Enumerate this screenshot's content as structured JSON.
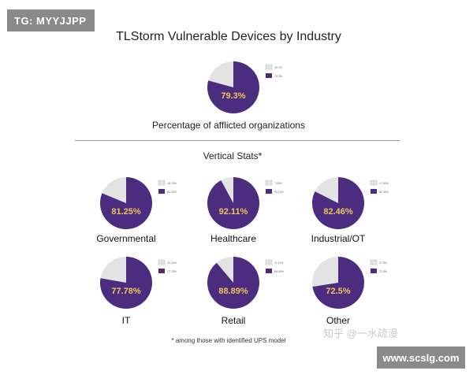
{
  "badge_tag": "TG: MYYJJPP",
  "badge_site": "www.scslg.com",
  "watermark": "知乎 @一水疏漫",
  "colors": {
    "affected": "#4b2c7f",
    "unaffected": "#e3e3e3",
    "label": "#f2c35c"
  },
  "chart_data": [
    {
      "type": "pie",
      "title": "TLStorm Vulnerable Devices by Industry",
      "caption": "Percentage of afflicted organizations",
      "center_label": "79.3%",
      "values": [
        20.7,
        79.3
      ],
      "legend": [
        "20.7%",
        "79.3%"
      ]
    },
    {
      "type": "pie",
      "section_title": "Vertical Stats*",
      "charts": [
        {
          "name": "Governmental",
          "center_label": "81.25%",
          "values": [
            18.75,
            81.25
          ],
          "legend": [
            "18.75%",
            "81.25%"
          ]
        },
        {
          "name": "Healthcare",
          "center_label": "92.11%",
          "values": [
            7.89,
            92.11
          ],
          "legend": [
            "7.89%",
            "92.11%"
          ]
        },
        {
          "name": "Industrial/OT",
          "center_label": "82.46%",
          "values": [
            17.54,
            82.46
          ],
          "legend": [
            "17.54%",
            "82.46%"
          ]
        },
        {
          "name": "IT",
          "center_label": "77.78%",
          "values": [
            22.22,
            77.78
          ],
          "legend": [
            "22.22%",
            "77.78%"
          ]
        },
        {
          "name": "Retail",
          "center_label": "88.89%",
          "values": [
            11.11,
            88.89
          ],
          "legend": [
            "11.11%",
            "88.89%"
          ]
        },
        {
          "name": "Other",
          "center_label": "72.5%",
          "values": [
            27.5,
            72.5
          ],
          "legend": [
            "27.5%",
            "72.5%"
          ]
        }
      ],
      "footnote": "* among those with identified UPS model"
    }
  ]
}
